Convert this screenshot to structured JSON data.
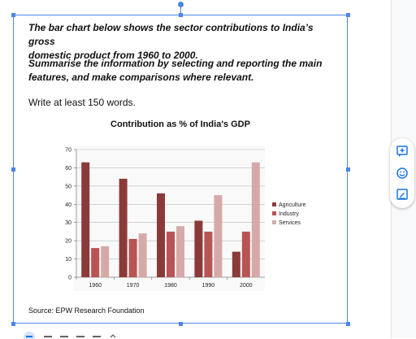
{
  "document": {
    "task_line1": "The bar chart below shows the sector contributions to India’s gross",
    "task_line2": "domestic product from 1960 to 2000.",
    "instr_line1": "Summarise the information by selecting and reporting the main",
    "instr_line2": "features, and make comparisons where relevant.",
    "word_count": "Write at least 150 words.",
    "source": "Source: EPW Research Foundation"
  },
  "side_toolbar": {
    "icons": [
      "add-comment-icon",
      "emoji-reaction-icon",
      "suggest-edit-icon"
    ]
  },
  "colors": {
    "selection": "#4a86e8",
    "agriculture": "#8b3a3a",
    "industry": "#b85454",
    "services": "#d6a9a9"
  },
  "chart_data": {
    "type": "bar",
    "title": "Contribution as % of India's GDP",
    "categories": [
      "1960",
      "1970",
      "1980",
      "1990",
      "2000"
    ],
    "series": [
      {
        "name": "Agriculture",
        "values": [
          63,
          54,
          46,
          31,
          14
        ]
      },
      {
        "name": "Industry",
        "values": [
          16,
          21,
          25,
          25,
          25
        ]
      },
      {
        "name": "Services",
        "values": [
          17,
          24,
          28,
          45,
          63
        ]
      }
    ],
    "ylim": [
      0,
      70
    ],
    "yticks": [
      "0",
      "10",
      "20",
      "30",
      "40",
      "50",
      "60",
      "70"
    ],
    "grid": true,
    "legend": "right"
  }
}
